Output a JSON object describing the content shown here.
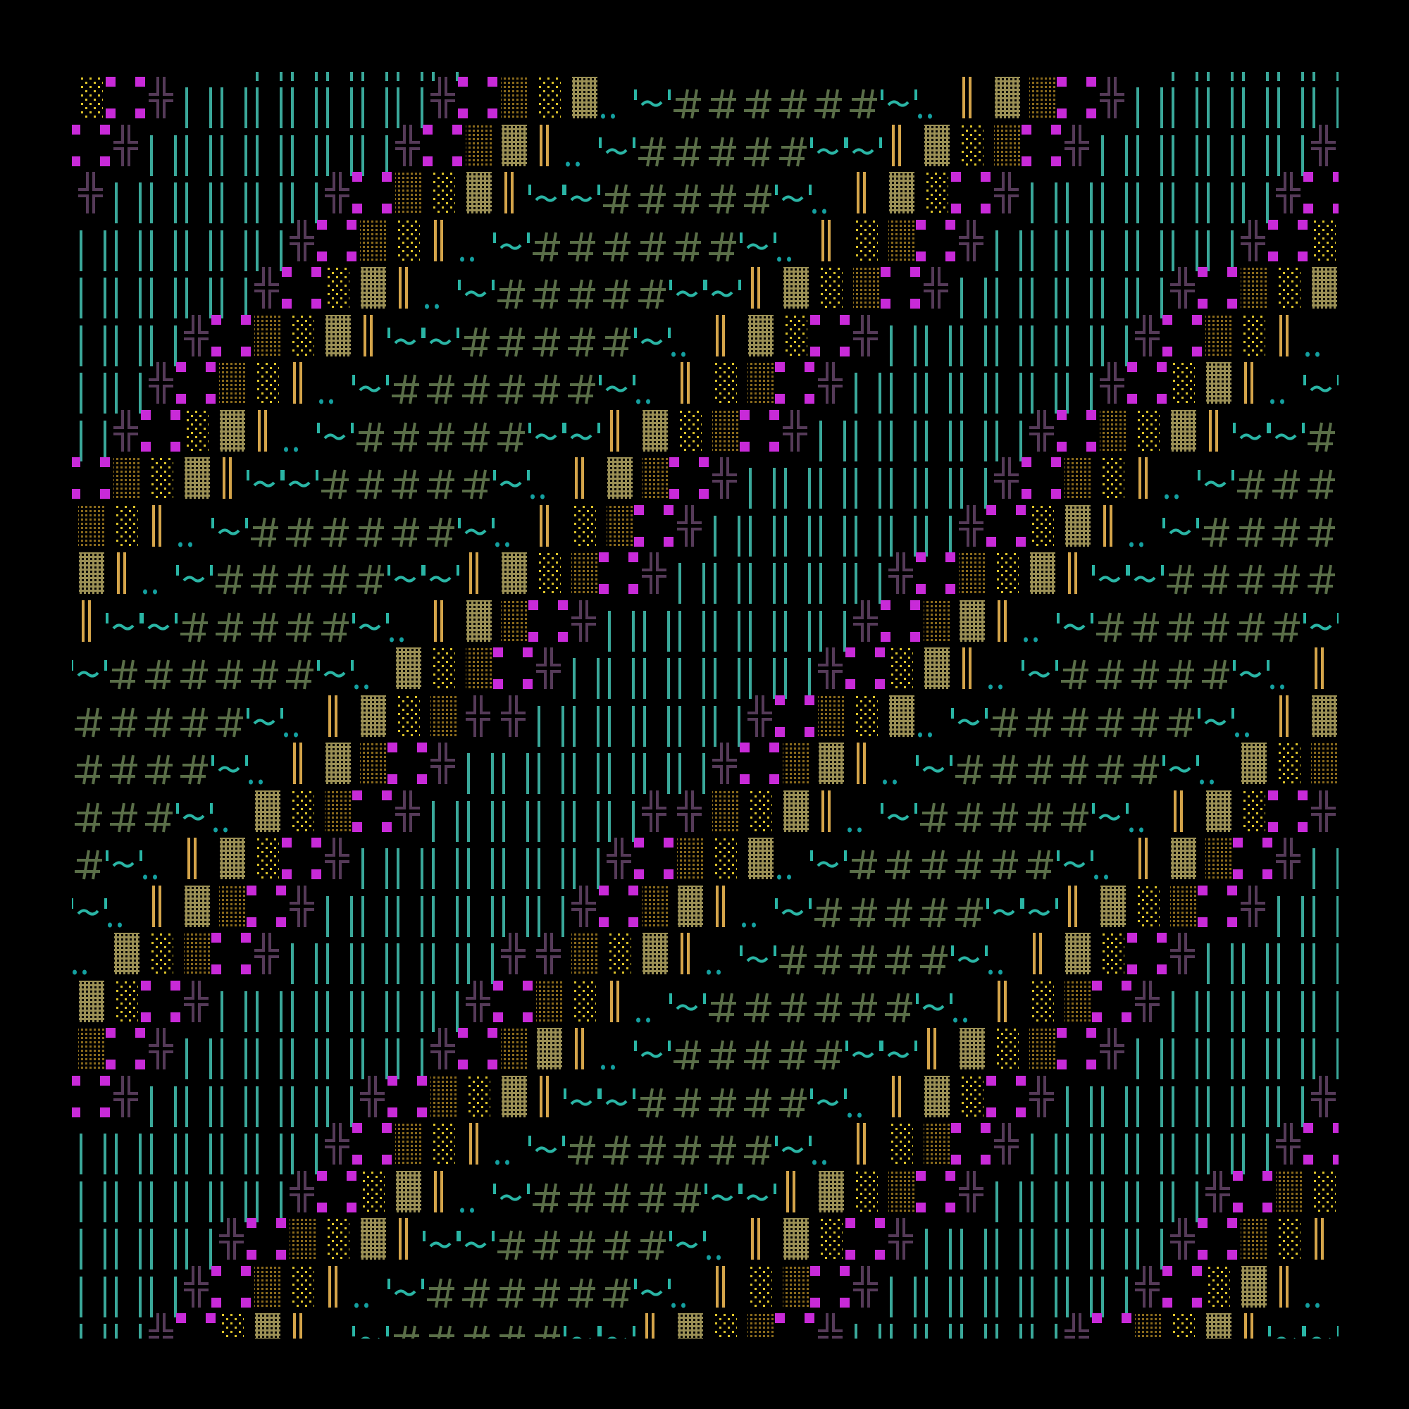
{
  "background": "#000000",
  "glyph_ramp": [
    "hash",
    "tilde",
    "dots",
    "double-bar",
    "khaki-block",
    "yellow-dots",
    "dark-dots",
    "magenta-corners",
    "double-cross",
    "teal-bars"
  ],
  "palette": {
    "hash": "#5a6e48",
    "tilde": "#2ab5a5",
    "dots": "#14a0a0",
    "double-bar": "#d4a44a",
    "khaki-block": "#9a8f55",
    "yellow-dots": "#dcc22a",
    "dark-dots": "#8a6a1c",
    "magenta-corners": "#c82ad8",
    "double-cross": "#553a58",
    "teal-bars": "#3aa89a"
  }
}
